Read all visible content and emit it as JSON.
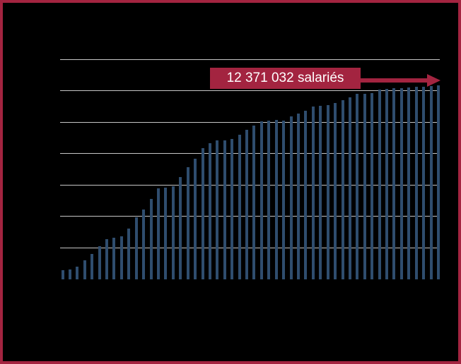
{
  "frame": {
    "background_color": "#000000",
    "border_color": "#A32440"
  },
  "annotation": {
    "label": "12 371 032 salariés",
    "box_color": "#A32440",
    "text_color": "#FFFFFF",
    "arrow_color": "#A32440",
    "arrow_direction": "right"
  },
  "chart_data": {
    "type": "bar",
    "title": "",
    "xlabel": "",
    "ylabel": "",
    "unit": "millions de salariés",
    "bar_color": "#2F4D6E",
    "gridline_color": "#C6C6C6",
    "grid": "horizontal",
    "ylim": [
      0,
      14
    ],
    "gridlines_millions": [
      2,
      4,
      6,
      8,
      10,
      12,
      14
    ],
    "final_value_label": "12 371 032 salariés",
    "values_millions": [
      0.59,
      0.62,
      0.82,
      1.2,
      1.61,
      2.11,
      2.56,
      2.67,
      2.76,
      3.26,
      3.97,
      4.45,
      5.11,
      5.79,
      5.86,
      5.96,
      6.52,
      7.16,
      7.7,
      8.38,
      8.7,
      8.88,
      8.88,
      8.97,
      9.24,
      9.56,
      9.83,
      10.1,
      10.15,
      10.19,
      10.15,
      10.38,
      10.6,
      10.77,
      11.02,
      11.07,
      11.11,
      11.27,
      11.45,
      11.63,
      11.83,
      11.86,
      11.9,
      12.13,
      12.16,
      12.2,
      12.22,
      12.25,
      12.27,
      12.3,
      12.33,
      12.37
    ]
  }
}
